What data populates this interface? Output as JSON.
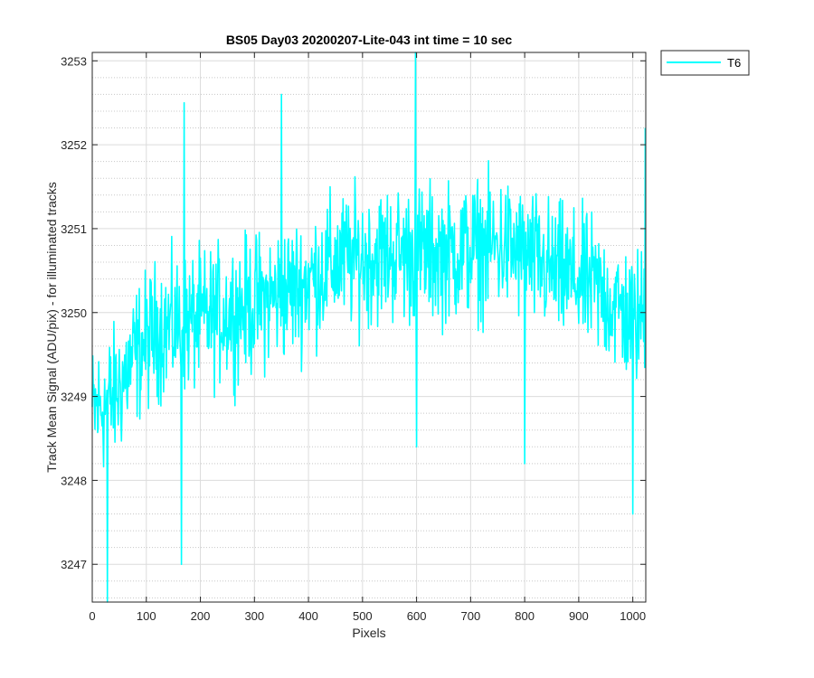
{
  "chart_data": {
    "type": "line",
    "title": "BS05 Day03 20200207-Lite-043 int time = 10 sec",
    "xlabel": "Pixels",
    "ylabel": "Track Mean Signal (ADU/pix) - for illuminated tracks",
    "xlim": [
      0,
      1024
    ],
    "ylim": [
      3246.55,
      3253.1
    ],
    "xticks": [
      0,
      100,
      200,
      300,
      400,
      500,
      600,
      700,
      800,
      900,
      1000
    ],
    "yticks": [
      3247,
      3248,
      3249,
      3250,
      3251,
      3252,
      3253
    ],
    "grid": true,
    "minor_grid_y": true,
    "legend_position": "outside-top-right",
    "series": [
      {
        "name": "T6",
        "color": "#00FFFF",
        "n_points": 1024,
        "trend": [
          [
            0,
            3248.8
          ],
          [
            40,
            3249.0
          ],
          [
            80,
            3249.5
          ],
          [
            120,
            3249.8
          ],
          [
            200,
            3249.9
          ],
          [
            300,
            3250.1
          ],
          [
            380,
            3250.3
          ],
          [
            450,
            3250.6
          ],
          [
            550,
            3250.7
          ],
          [
            650,
            3250.7
          ],
          [
            760,
            3250.8
          ],
          [
            850,
            3250.5
          ],
          [
            930,
            3250.3
          ],
          [
            1000,
            3249.9
          ],
          [
            1023,
            3250.0
          ]
        ],
        "noise_half_range": 1.2,
        "observed_min": 3246.55,
        "observed_max": 3253.1,
        "features": [
          [
            598,
            3253.1
          ],
          [
            350,
            3252.6
          ],
          [
            170,
            3252.5
          ],
          [
            600,
            3248.4
          ],
          [
            28,
            3246.55
          ],
          [
            165,
            3247.0
          ],
          [
            1000,
            3247.6
          ],
          [
            800,
            3248.2
          ],
          [
            1023,
            3252.2
          ]
        ]
      }
    ]
  }
}
